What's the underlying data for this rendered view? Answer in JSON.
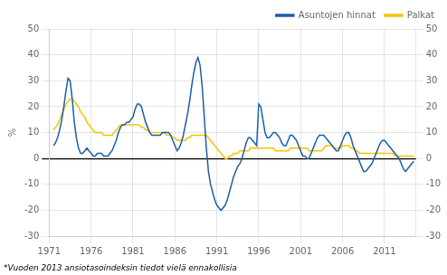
{
  "chart_data": {
    "type": "line",
    "ylabel": "%",
    "footnote": "*Vuoden 2013 ansiotasoindeksin tiedot vielä ennakollisia",
    "xlim": [
      1971.0,
      2014.75
    ],
    "xticks": [
      1971,
      1976,
      1981,
      1986,
      1991,
      1996,
      2001,
      2006,
      2011
    ],
    "ylim": [
      -30,
      50
    ],
    "yticks": [
      -30,
      -20,
      -10,
      0,
      10,
      20,
      30,
      40,
      50
    ],
    "y2lim": [
      -30,
      50
    ],
    "y2ticks": [
      -30,
      -20,
      -10,
      0,
      10,
      20,
      30,
      40,
      50
    ],
    "grid": true,
    "legend": "upper right",
    "x": [
      1971.5,
      1971.75,
      1972.0,
      1972.25,
      1972.5,
      1972.75,
      1973.0,
      1973.25,
      1973.5,
      1973.75,
      1974.0,
      1974.25,
      1974.5,
      1974.75,
      1975.0,
      1975.25,
      1975.5,
      1975.75,
      1976.0,
      1976.25,
      1976.5,
      1976.75,
      1977.0,
      1977.25,
      1977.5,
      1977.75,
      1978.0,
      1978.25,
      1978.5,
      1978.75,
      1979.0,
      1979.25,
      1979.5,
      1979.75,
      1980.0,
      1980.25,
      1980.5,
      1980.75,
      1981.0,
      1981.25,
      1981.5,
      1981.75,
      1982.0,
      1982.25,
      1982.5,
      1982.75,
      1983.0,
      1983.25,
      1983.5,
      1983.75,
      1984.0,
      1984.25,
      1984.5,
      1984.75,
      1985.0,
      1985.25,
      1985.5,
      1985.75,
      1986.0,
      1986.25,
      1986.5,
      1986.75,
      1987.0,
      1987.25,
      1987.5,
      1987.75,
      1988.0,
      1988.25,
      1988.5,
      1988.75,
      1989.0,
      1989.25,
      1989.5,
      1989.75,
      1990.0,
      1990.25,
      1990.5,
      1990.75,
      1991.0,
      1991.25,
      1991.5,
      1991.75,
      1992.0,
      1992.25,
      1992.5,
      1992.75,
      1993.0,
      1993.25,
      1993.5,
      1993.75,
      1994.0,
      1994.25,
      1994.5,
      1994.75,
      1995.0,
      1995.25,
      1995.5,
      1995.75,
      1996.0,
      1996.25,
      1996.5,
      1996.75,
      1997.0,
      1997.25,
      1997.5,
      1997.75,
      1998.0,
      1998.25,
      1998.5,
      1998.75,
      1999.0,
      1999.25,
      1999.5,
      1999.75,
      2000.0,
      2000.25,
      2000.5,
      2000.75,
      2001.0,
      2001.25,
      2001.5,
      2001.75,
      2002.0,
      2002.25,
      2002.5,
      2002.75,
      2003.0,
      2003.25,
      2003.5,
      2003.75,
      2004.0,
      2004.25,
      2004.5,
      2004.75,
      2005.0,
      2005.25,
      2005.5,
      2005.75,
      2006.0,
      2006.25,
      2006.5,
      2006.75,
      2007.0,
      2007.25,
      2007.5,
      2007.75,
      2008.0,
      2008.25,
      2008.5,
      2008.75,
      2009.0,
      2009.25,
      2009.5,
      2009.75,
      2010.0,
      2010.25,
      2010.5,
      2010.75,
      2011.0,
      2011.25,
      2011.5,
      2011.75,
      2012.0,
      2012.25,
      2012.5,
      2012.75,
      2013.0,
      2013.25,
      2013.5,
      2013.75,
      2014.0,
      2014.25,
      2014.5
    ],
    "series": [
      {
        "name": "Asuntojen hinnat",
        "color": "#1B5EA8",
        "values": [
          5,
          6,
          8,
          11,
          15,
          20,
          26,
          31,
          30,
          23,
          14,
          8,
          4,
          2,
          2,
          3,
          4,
          3,
          2,
          1,
          1,
          2,
          2,
          2,
          1,
          1,
          1,
          2,
          3,
          5,
          7,
          10,
          12,
          13,
          13,
          14,
          14,
          15,
          16,
          19,
          21,
          21,
          20,
          17,
          14,
          12,
          10,
          9,
          9,
          9,
          9,
          9,
          10,
          10,
          10,
          10,
          9,
          7,
          5,
          3,
          4,
          6,
          9,
          13,
          17,
          22,
          28,
          33,
          37,
          39,
          36,
          28,
          16,
          4,
          -5,
          -10,
          -13,
          -16,
          -18,
          -19,
          -20,
          -19,
          -18,
          -16,
          -13,
          -10,
          -7,
          -5,
          -3,
          -2,
          0,
          3,
          6,
          8,
          8,
          7,
          6,
          5,
          21,
          20,
          15,
          10,
          8,
          8,
          9,
          10,
          10,
          9,
          8,
          6,
          5,
          5,
          7,
          9,
          9,
          8,
          7,
          5,
          3,
          1,
          1,
          0,
          0,
          2,
          4,
          6,
          8,
          9,
          9,
          9,
          8,
          7,
          6,
          5,
          4,
          3,
          3,
          5,
          7,
          9,
          10,
          10,
          8,
          5,
          3,
          1,
          -1,
          -3,
          -5,
          -5,
          -4,
          -3,
          -2,
          0,
          2,
          4,
          6,
          7,
          7,
          6,
          5,
          4,
          3,
          2,
          1,
          0,
          -2,
          -4,
          -5,
          -4,
          -3,
          -2,
          -1
        ]
      },
      {
        "name": "Palkat",
        "color": "#F5C400",
        "values": [
          11,
          12,
          13,
          15,
          17,
          19,
          21,
          22,
          23,
          23,
          22,
          21,
          20,
          18,
          17,
          16,
          14,
          13,
          12,
          11,
          10,
          10,
          10,
          10,
          9,
          9,
          9,
          9,
          9,
          10,
          11,
          12,
          13,
          13,
          13,
          13,
          13,
          13,
          13,
          13,
          13,
          13,
          12,
          12,
          11,
          11,
          10,
          10,
          10,
          10,
          10,
          10,
          10,
          10,
          9,
          9,
          9,
          8,
          8,
          7,
          7,
          7,
          7,
          7,
          8,
          8,
          9,
          9,
          9,
          9,
          9,
          9,
          9,
          9,
          8,
          7,
          6,
          5,
          4,
          3,
          2,
          1,
          0,
          0,
          1,
          1,
          2,
          2,
          2,
          3,
          3,
          3,
          3,
          3,
          4,
          4,
          4,
          4,
          4,
          4,
          4,
          4,
          4,
          4,
          4,
          4,
          3,
          3,
          3,
          3,
          3,
          3,
          3,
          4,
          4,
          4,
          4,
          4,
          4,
          4,
          4,
          4,
          3,
          3,
          3,
          3,
          3,
          3,
          3,
          4,
          5,
          5,
          5,
          5,
          4,
          4,
          4,
          4,
          5,
          5,
          5,
          5,
          4,
          4,
          3,
          3,
          2,
          2,
          2,
          2,
          2,
          2,
          2,
          2,
          2,
          2,
          2,
          2,
          2,
          2,
          2,
          2,
          2,
          1,
          1,
          1,
          1,
          1,
          1,
          1,
          1,
          1,
          1
        ]
      }
    ]
  }
}
